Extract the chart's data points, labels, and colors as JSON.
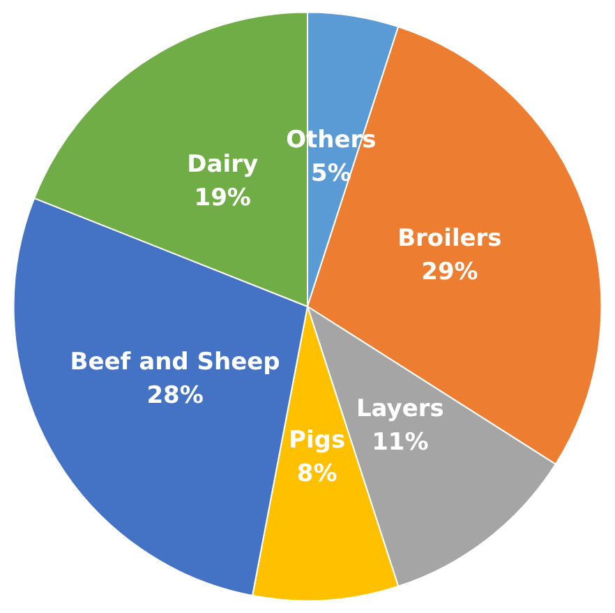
{
  "chart_data": {
    "type": "pie",
    "categories": [
      "Others",
      "Broilers",
      "Layers",
      "Pigs",
      "Beef and Sheep",
      "Dairy"
    ],
    "values": [
      5,
      29,
      11,
      8,
      28,
      19
    ],
    "value_labels": [
      "5%",
      "29%",
      "11%",
      "8%",
      "28%",
      "19%"
    ],
    "colors": [
      "#5b9bd5",
      "#ed7d31",
      "#a5a5a5",
      "#ffc000",
      "#4472c4",
      "#70ad47"
    ],
    "legend": false
  }
}
